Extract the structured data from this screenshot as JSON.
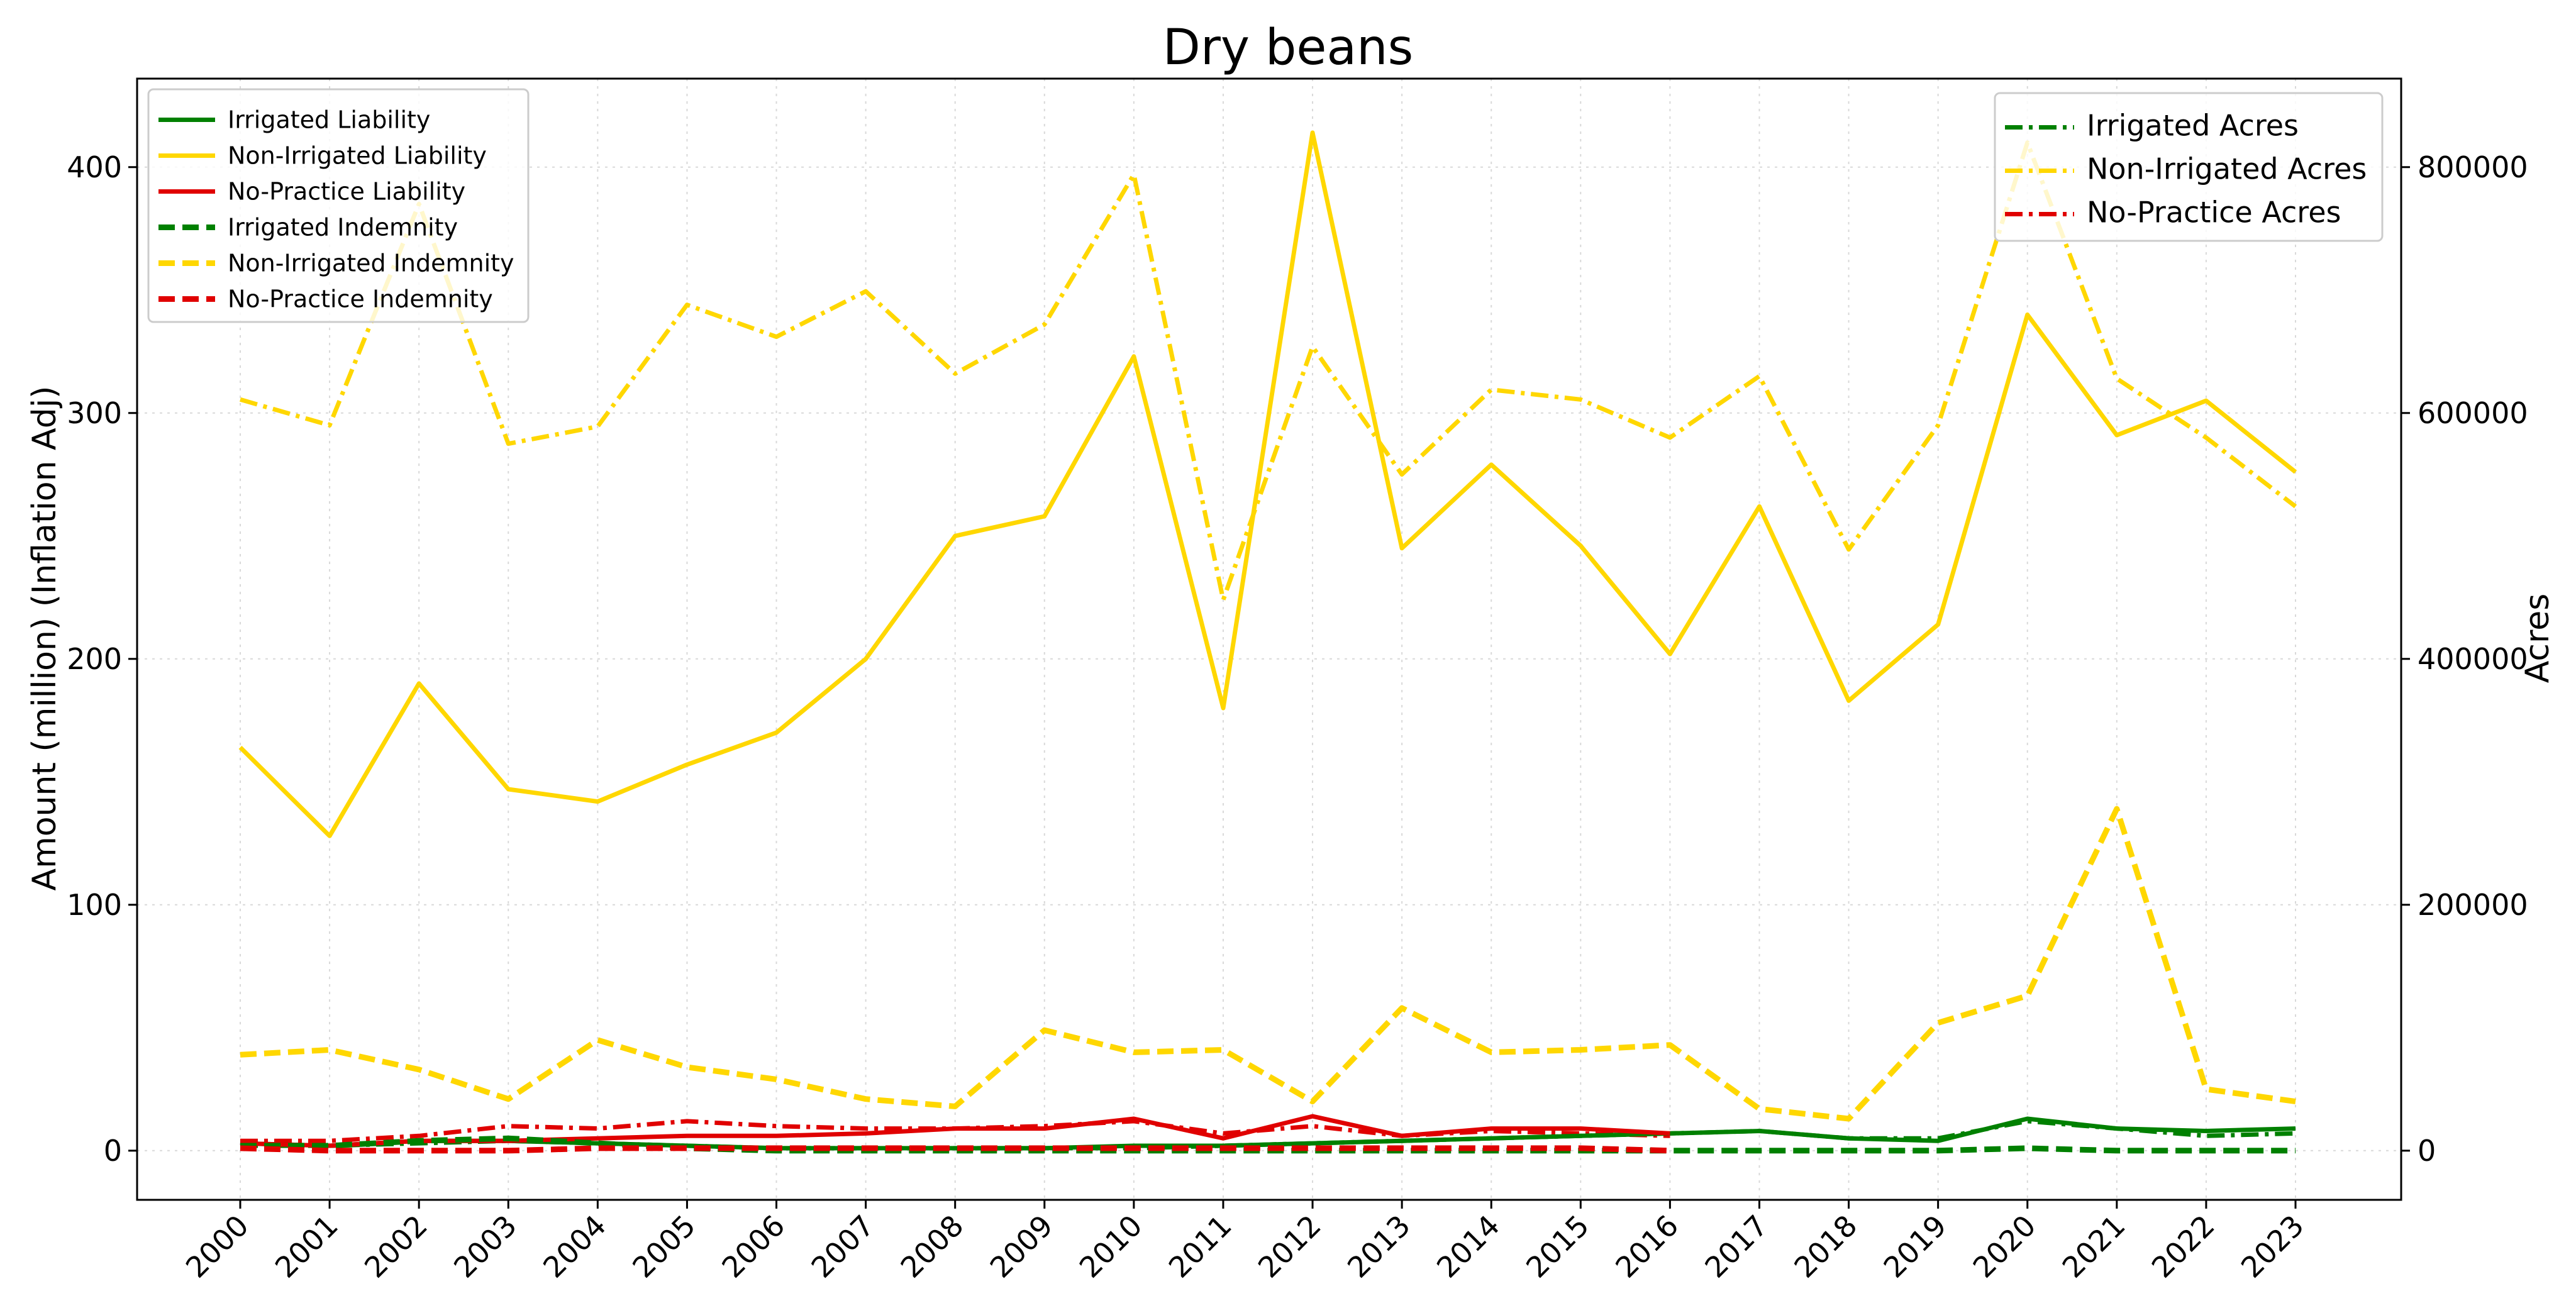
{
  "chart_data": {
    "type": "line",
    "title": "Dry beans",
    "xlabel": "",
    "ylabel": "Amount (million) (Inflation Adj)",
    "y2label": "Acres",
    "x": [
      "2000",
      "2001",
      "2002",
      "2003",
      "2004",
      "2005",
      "2006",
      "2007",
      "2008",
      "2009",
      "2010",
      "2011",
      "2012",
      "2013",
      "2014",
      "2015",
      "2016",
      "2017",
      "2018",
      "2019",
      "2020",
      "2021",
      "2022",
      "2023"
    ],
    "ylim": [
      -20,
      436
    ],
    "y2lim": [
      -40000,
      872000
    ],
    "yticks": [
      "0",
      "100",
      "200",
      "300",
      "400"
    ],
    "y2ticks": [
      "0",
      "200000",
      "400000",
      "600000",
      "800000"
    ],
    "grid": true,
    "legend_left_placement": "top-left",
    "legend_right_placement": "top-right",
    "colors": {
      "irrigated": "#008000",
      "non_irrigated": "#ffd700",
      "no_practice": "#e00000"
    },
    "series": [
      {
        "name": "Irrigated Liability",
        "axis": "left",
        "style": "solid",
        "color": "#008000",
        "values": [
          3,
          2,
          4,
          4,
          3,
          2,
          1,
          1,
          1,
          1,
          2,
          2,
          3,
          4,
          5,
          6,
          7,
          8,
          5,
          4,
          13,
          9,
          8,
          9
        ]
      },
      {
        "name": "Non-Irrigated Liability",
        "axis": "left",
        "style": "solid",
        "color": "#ffd700",
        "values": [
          164,
          128,
          190,
          147,
          142,
          157,
          170,
          200,
          250,
          258,
          323,
          180,
          414,
          245,
          279,
          246,
          202,
          262,
          183,
          214,
          340,
          291,
          305,
          276
        ]
      },
      {
        "name": "No-Practice Liability",
        "axis": "left",
        "style": "solid",
        "color": "#e00000",
        "values": [
          3,
          2,
          4,
          4,
          5,
          6,
          6,
          7,
          9,
          9,
          13,
          5,
          14,
          6,
          9,
          9,
          7,
          null,
          null,
          null,
          null,
          null,
          null,
          null
        ]
      },
      {
        "name": "Irrigated Indemnity",
        "axis": "left",
        "style": "dashed",
        "color": "#008000",
        "values": [
          2,
          2,
          4,
          5,
          3,
          1,
          0,
          0,
          0,
          0,
          0,
          0,
          0,
          0,
          0,
          0,
          0,
          0,
          0,
          0,
          1,
          0,
          0,
          0
        ]
      },
      {
        "name": "Non-Irrigated Indemnity",
        "axis": "left",
        "style": "dashed",
        "color": "#ffd700",
        "values": [
          39,
          41,
          33,
          21,
          45,
          34,
          29,
          21,
          18,
          49,
          40,
          41,
          20,
          58,
          40,
          41,
          43,
          17,
          13,
          52,
          63,
          139,
          25,
          20
        ]
      },
      {
        "name": "No-Practice Indemnity",
        "axis": "left",
        "style": "dashed",
        "color": "#e00000",
        "values": [
          1,
          0,
          0,
          0,
          1,
          1,
          1,
          1,
          1,
          1,
          1,
          1,
          1,
          1,
          1,
          1,
          0,
          null,
          null,
          null,
          null,
          null,
          null,
          null
        ]
      },
      {
        "name": "Irrigated Acres",
        "axis": "right",
        "style": "dashdot",
        "color": "#008000",
        "values": [
          4000,
          4000,
          6000,
          8000,
          6000,
          4000,
          2000,
          2000,
          2000,
          2000,
          2000,
          4000,
          6000,
          8000,
          10000,
          12000,
          14000,
          16000,
          10000,
          10000,
          24000,
          18000,
          12000,
          14000
        ]
      },
      {
        "name": "Non-Irrigated Acres",
        "axis": "right",
        "style": "dashdot",
        "color": "#ffd700",
        "values": [
          611000,
          590000,
          770000,
          575000,
          589000,
          688000,
          662000,
          699000,
          632000,
          672000,
          794000,
          448000,
          654000,
          550000,
          619000,
          611000,
          580000,
          630000,
          489000,
          590000,
          820000,
          628000,
          580000,
          524000
        ]
      },
      {
        "name": "No-Practice Acres",
        "axis": "right",
        "style": "dashdot",
        "color": "#e00000",
        "values": [
          8000,
          8000,
          12000,
          20000,
          18000,
          24000,
          20000,
          18000,
          18000,
          20000,
          24000,
          14000,
          20000,
          12000,
          16000,
          14000,
          12000,
          null,
          null,
          null,
          null,
          null,
          null,
          null
        ]
      }
    ]
  }
}
